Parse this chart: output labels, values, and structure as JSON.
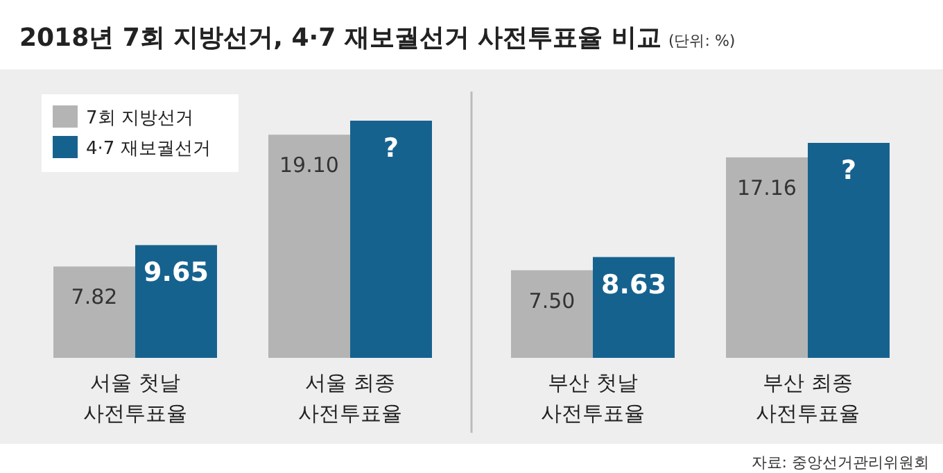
{
  "chart_data": {
    "type": "bar",
    "title": "2018년 7회 지방선거, 4·7 재보궐선거 사전투표율 비교",
    "subtitle": "(단위: %)",
    "categories": [
      "서울 첫날\n사전투표율",
      "서울 최종\n사전투표율",
      "부산 첫날\n사전투표율",
      "부산 최종\n사전투표율"
    ],
    "series": [
      {
        "name": "7회 지방선거",
        "color": "#b4b4b4",
        "values": [
          7.82,
          19.1,
          7.5,
          17.16
        ],
        "value_labels": [
          "7.82",
          "19.10",
          "7.50",
          "17.16"
        ]
      },
      {
        "name": "4·7 재보궐선거",
        "color": "#16628f",
        "values": [
          9.65,
          20.3,
          8.63,
          18.4
        ],
        "value_labels": [
          "9.65",
          "?",
          "8.63",
          "?"
        ]
      }
    ],
    "legend": "top left",
    "annotations": [
      "자료: 중앙선거관리위원회"
    ]
  }
}
